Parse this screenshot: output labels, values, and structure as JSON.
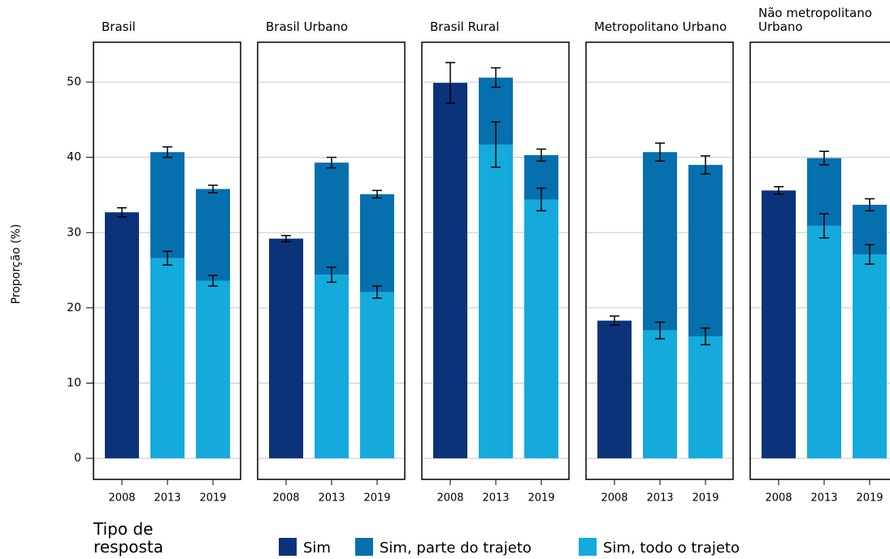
{
  "chart_data": {
    "type": "bar",
    "stacked": true,
    "ylabel": "Proporção (%)",
    "legend_title": "Tipo de resposta",
    "ylim": [
      -2.8,
      55.3
    ],
    "yticks": [
      0,
      10,
      20,
      30,
      40,
      50
    ],
    "grid": true,
    "series": [
      {
        "name": "Sim",
        "color": "#0b337a"
      },
      {
        "name": "Sim, parte do trajeto",
        "color": "#0570ad"
      },
      {
        "name": "Sim, todo o trajeto",
        "color": "#14aadc"
      }
    ],
    "panels": [
      {
        "title": "Brasil",
        "categories": [
          "2008",
          "2013",
          "2019"
        ],
        "values": [
          [
            32.7,
            null,
            null
          ],
          [
            null,
            14.1,
            12.2
          ],
          [
            null,
            26.6,
            23.6
          ]
        ],
        "errors": [
          [
            0.6,
            null,
            null
          ],
          [
            null,
            0.7,
            0.5
          ],
          [
            null,
            0.9,
            0.7
          ]
        ]
      },
      {
        "title": "Brasil Urbano",
        "categories": [
          "2008",
          "2013",
          "2019"
        ],
        "values": [
          [
            29.2,
            null,
            null
          ],
          [
            null,
            14.9,
            13.0
          ],
          [
            null,
            24.4,
            22.1
          ]
        ],
        "errors": [
          [
            0.4,
            null,
            null
          ],
          [
            null,
            0.7,
            0.5
          ],
          [
            null,
            1.0,
            0.8
          ]
        ]
      },
      {
        "title": "Brasil Rural",
        "categories": [
          "2008",
          "2013",
          "2019"
        ],
        "values": [
          [
            49.9,
            null,
            null
          ],
          [
            null,
            8.9,
            5.9
          ],
          [
            null,
            41.7,
            34.4
          ]
        ],
        "errors": [
          [
            2.7,
            null,
            null
          ],
          [
            null,
            1.3,
            0.8
          ],
          [
            null,
            3.0,
            1.5
          ]
        ]
      },
      {
        "title": "Metropolitano Urbano",
        "categories": [
          "2008",
          "2013",
          "2019"
        ],
        "values": [
          [
            18.3,
            null,
            null
          ],
          [
            null,
            23.7,
            22.8
          ],
          [
            null,
            17.0,
            16.2
          ]
        ],
        "errors": [
          [
            0.6,
            null,
            null
          ],
          [
            null,
            1.2,
            1.2
          ],
          [
            null,
            1.1,
            1.1
          ]
        ]
      },
      {
        "title": "Não metropolitano Urbano",
        "categories": [
          "2008",
          "2013",
          "2019"
        ],
        "values": [
          [
            35.6,
            null,
            null
          ],
          [
            null,
            9.0,
            6.6
          ],
          [
            null,
            30.9,
            27.1
          ]
        ],
        "errors": [
          [
            0.5,
            null,
            null
          ],
          [
            null,
            0.9,
            0.8
          ],
          [
            null,
            1.6,
            1.3
          ]
        ]
      }
    ]
  }
}
